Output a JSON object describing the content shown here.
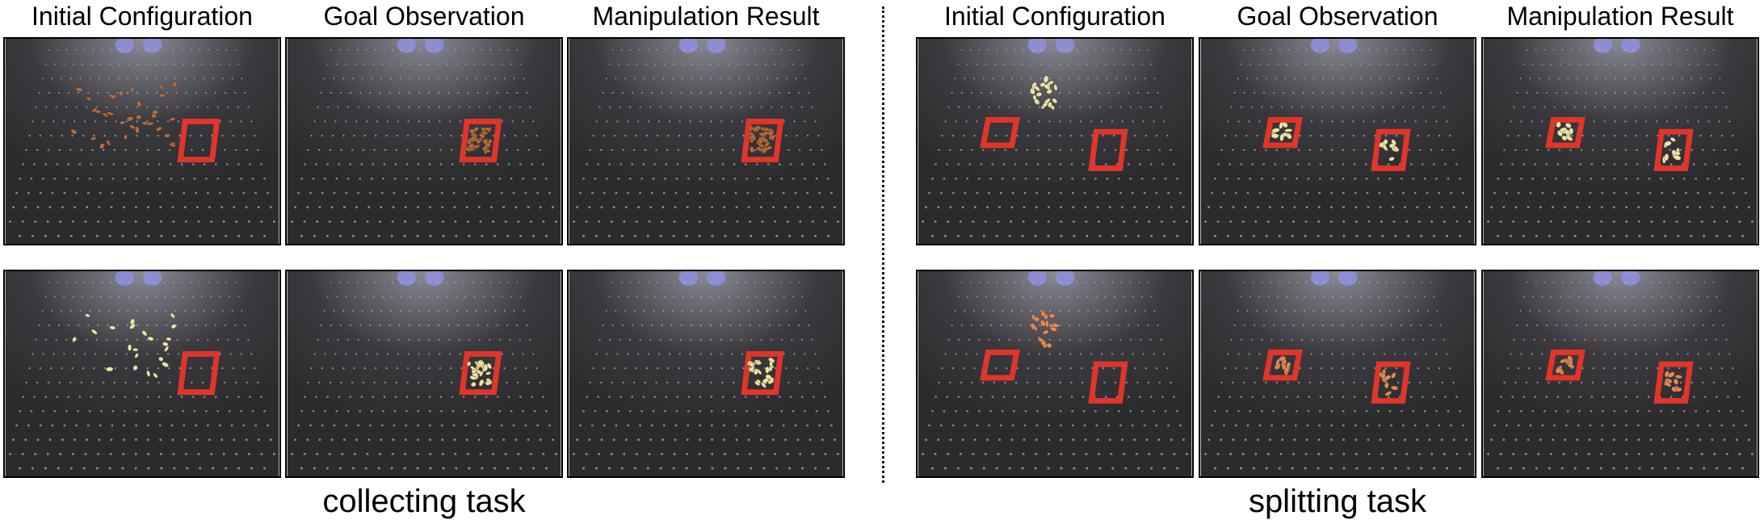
{
  "column_titles": {
    "left_1": "Initial Configuration",
    "left_2": "Goal Observation",
    "left_3": "Manipulation Result",
    "right_1": "Initial Configuration",
    "right_2": "Goal Observation",
    "right_3": "Manipulation Result"
  },
  "captions": {
    "left": "collecting task",
    "right": "splitting task"
  },
  "colors": {
    "frame_border": "#000000",
    "tape_red": "#e0352a",
    "item_brown": "#b56a3e",
    "item_cream": "#efe3a6",
    "item_peach": "#e08a55",
    "board_dark": "#2b2b2e",
    "light_blue": "#8f8fe0"
  },
  "panels": [
    {
      "task": "collecting",
      "row": 1,
      "column": "Initial Configuration",
      "items": "brown",
      "state": "scattered"
    },
    {
      "task": "collecting",
      "row": 1,
      "column": "Goal Observation",
      "items": "brown",
      "state": "inside-square"
    },
    {
      "task": "collecting",
      "row": 1,
      "column": "Manipulation Result",
      "items": "brown",
      "state": "inside-square"
    },
    {
      "task": "collecting",
      "row": 2,
      "column": "Initial Configuration",
      "items": "cream",
      "state": "scattered"
    },
    {
      "task": "collecting",
      "row": 2,
      "column": "Goal Observation",
      "items": "cream",
      "state": "inside-square"
    },
    {
      "task": "collecting",
      "row": 2,
      "column": "Manipulation Result",
      "items": "cream",
      "state": "inside-square"
    },
    {
      "task": "splitting",
      "row": 1,
      "column": "Initial Configuration",
      "items": "cream",
      "state": "pile-between-squares"
    },
    {
      "task": "splitting",
      "row": 1,
      "column": "Goal Observation",
      "items": "cream",
      "state": "split-into-two-squares"
    },
    {
      "task": "splitting",
      "row": 1,
      "column": "Manipulation Result",
      "items": "cream",
      "state": "split-into-two-squares"
    },
    {
      "task": "splitting",
      "row": 2,
      "column": "Initial Configuration",
      "items": "peach",
      "state": "pile-between-squares"
    },
    {
      "task": "splitting",
      "row": 2,
      "column": "Goal Observation",
      "items": "peach",
      "state": "split-into-two-squares"
    },
    {
      "task": "splitting",
      "row": 2,
      "column": "Manipulation Result",
      "items": "peach",
      "state": "split-into-two-squares"
    }
  ]
}
